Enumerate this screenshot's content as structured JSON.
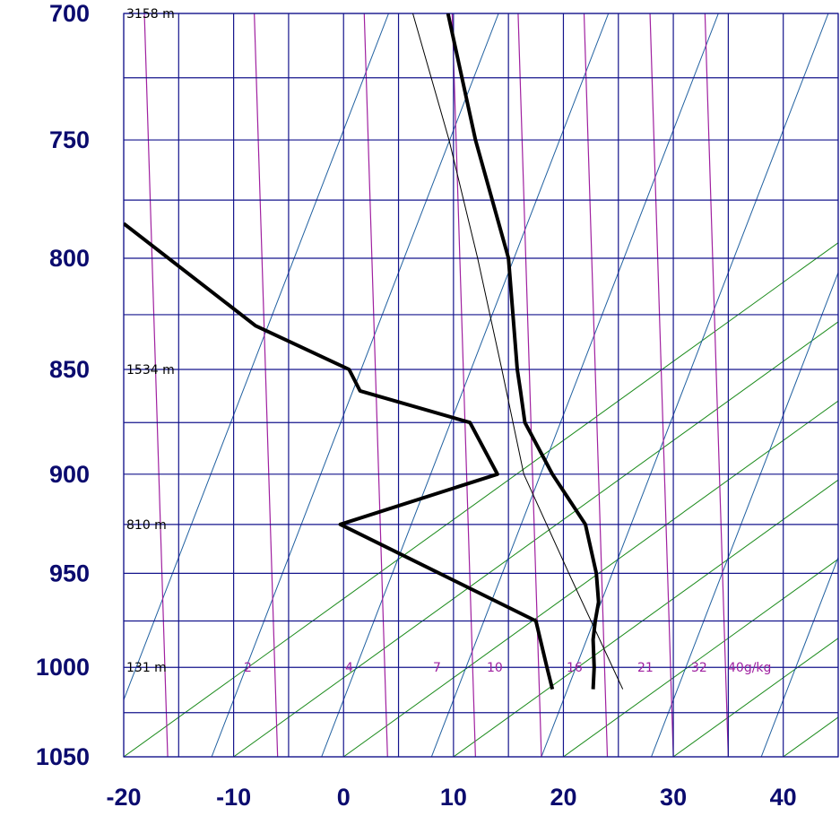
{
  "chart_data": {
    "type": "line",
    "chart_kind": "skew-T log-P thermodynamic diagram",
    "title": "",
    "xlabel": "",
    "ylabel": "",
    "y_scale": "log",
    "y_inverted": true,
    "xlim": [
      -20,
      45
    ],
    "ylim": [
      1050,
      700
    ],
    "x_ticks": [
      -20,
      -10,
      0,
      10,
      20,
      30,
      40
    ],
    "x_tick_labels": [
      "-20",
      "-10",
      "0",
      "10",
      "20",
      "30",
      "40"
    ],
    "y_ticks": [
      700,
      750,
      800,
      850,
      900,
      950,
      1000,
      1050
    ],
    "y_tick_labels": [
      "700",
      "750",
      "800",
      "850",
      "900",
      "950",
      "1000",
      "1050"
    ],
    "grid": true,
    "height_labels": [
      {
        "p": 700,
        "text": "3158 m"
      },
      {
        "p": 850,
        "text": "1534 m"
      },
      {
        "p": 925,
        "text": "810 m"
      },
      {
        "p": 1000,
        "text": "131 m"
      }
    ],
    "mixing_ratio_labels": [
      "2",
      "4",
      "7",
      "10",
      "16",
      "21",
      "32",
      "40g/kg"
    ],
    "series": [
      {
        "role": "temperature",
        "color": "#000000",
        "points": [
          {
            "p": 1012,
            "t": 22.7
          },
          {
            "p": 1000,
            "t": 22.8
          },
          {
            "p": 985,
            "t": 22.7
          },
          {
            "p": 975,
            "t": 22.9
          },
          {
            "p": 965,
            "t": 23.2
          },
          {
            "p": 950,
            "t": 23.0
          },
          {
            "p": 925,
            "t": 22.0
          },
          {
            "p": 900,
            "t": 19.0
          },
          {
            "p": 875,
            "t": 16.5
          },
          {
            "p": 860,
            "t": 16.1
          },
          {
            "p": 850,
            "t": 15.8
          },
          {
            "p": 800,
            "t": 15.0
          },
          {
            "p": 750,
            "t": 12.0
          },
          {
            "p": 700,
            "t": 9.5
          }
        ]
      },
      {
        "role": "dewpoint",
        "color": "#000000",
        "points": [
          {
            "p": 1012,
            "t": 19.0
          },
          {
            "p": 1000,
            "t": 18.5
          },
          {
            "p": 975,
            "t": 17.5
          },
          {
            "p": 925,
            "t": -0.3
          },
          {
            "p": 900,
            "t": 14.0
          },
          {
            "p": 875,
            "t": 11.5
          },
          {
            "p": 860,
            "t": 1.5
          },
          {
            "p": 850,
            "t": 0.5
          },
          {
            "p": 830,
            "t": -8.0
          },
          {
            "p": 785,
            "t": -20.0
          }
        ]
      },
      {
        "role": "parcel",
        "color": "#000000",
        "points": [
          {
            "p": 1012,
            "t": 25.4
          },
          {
            "p": 950,
            "t": 20.5
          },
          {
            "p": 900,
            "t": 16.4
          },
          {
            "p": 850,
            "t": 14.4
          },
          {
            "p": 800,
            "t": 12.2
          },
          {
            "p": 750,
            "t": 9.6
          },
          {
            "p": 700,
            "t": 6.3
          }
        ]
      }
    ]
  }
}
